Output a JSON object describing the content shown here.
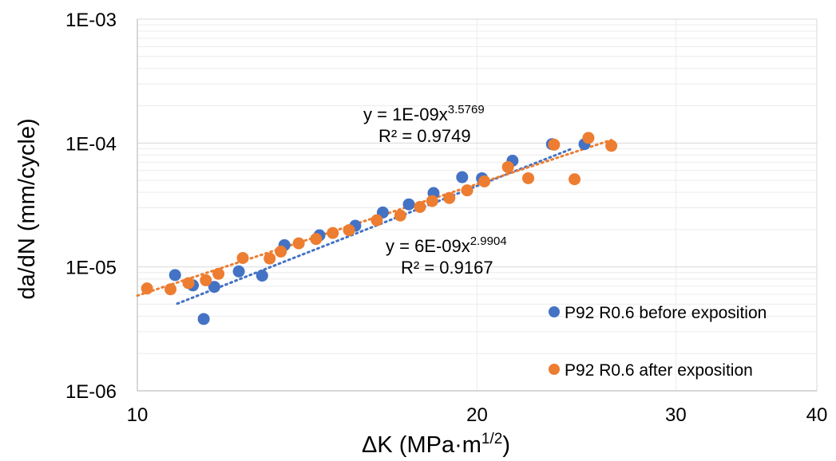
{
  "chart_data": {
    "type": "scatter",
    "xscale": "log",
    "yscale": "log",
    "xlim": [
      10,
      40
    ],
    "ylim": [
      1e-06,
      0.001
    ],
    "x_ticks": [
      {
        "value": 10,
        "label": "10"
      },
      {
        "value": 20,
        "label": "20"
      },
      {
        "value": 30,
        "label": "30"
      },
      {
        "value": 40,
        "label": "40"
      }
    ],
    "y_ticks": [
      {
        "value": 1e-06,
        "label": "1E-06"
      },
      {
        "value": 1e-05,
        "label": "1E-05"
      },
      {
        "value": 0.0001,
        "label": "1E-04"
      },
      {
        "value": 0.001,
        "label": "1E-03"
      }
    ],
    "xlabel": {
      "main": "ΔK (MPa·m",
      "sup": "1/2",
      "tail": ")"
    },
    "ylabel": "da/dN (mm/cycle)",
    "grid": {
      "major": true,
      "minor": true
    },
    "legend_position": "right",
    "series": [
      {
        "name": "P92 R0.6 before exposition",
        "color": "#4472C4",
        "points": [
          {
            "x": 10.8,
            "y": 8.6e-06
          },
          {
            "x": 11.2,
            "y": 7.1e-06
          },
          {
            "x": 11.45,
            "y": 3.8e-06
          },
          {
            "x": 11.7,
            "y": 6.9e-06
          },
          {
            "x": 12.3,
            "y": 9.2e-06
          },
          {
            "x": 12.9,
            "y": 8.5e-06
          },
          {
            "x": 13.5,
            "y": 1.5e-05
          },
          {
            "x": 14.5,
            "y": 1.8e-05
          },
          {
            "x": 15.6,
            "y": 2.15e-05
          },
          {
            "x": 16.5,
            "y": 2.75e-05
          },
          {
            "x": 17.4,
            "y": 3.2e-05
          },
          {
            "x": 18.3,
            "y": 3.95e-05
          },
          {
            "x": 19.4,
            "y": 5.3e-05
          },
          {
            "x": 20.2,
            "y": 5.2e-05
          },
          {
            "x": 21.5,
            "y": 7.2e-05
          },
          {
            "x": 23.3,
            "y": 9.8e-05
          },
          {
            "x": 24.9,
            "y": 9.8e-05
          }
        ],
        "trendline": {
          "coef": 1e-09,
          "exponent": 3.5769,
          "x_range": [
            10.85,
            24.2
          ],
          "equation": {
            "main": "y = 1E-09x",
            "sup": "3.5769"
          },
          "r2": "R² = 0.9749"
        }
      },
      {
        "name": "P92 R0.6 after exposition",
        "color": "#ED7D31",
        "points": [
          {
            "x": 10.2,
            "y": 6.7e-06
          },
          {
            "x": 10.7,
            "y": 6.6e-06
          },
          {
            "x": 11.1,
            "y": 7.4e-06
          },
          {
            "x": 11.5,
            "y": 7.8e-06
          },
          {
            "x": 11.8,
            "y": 8.8e-06
          },
          {
            "x": 12.4,
            "y": 1.18e-05
          },
          {
            "x": 13.1,
            "y": 1.17e-05
          },
          {
            "x": 13.4,
            "y": 1.33e-05
          },
          {
            "x": 13.9,
            "y": 1.55e-05
          },
          {
            "x": 14.4,
            "y": 1.68e-05
          },
          {
            "x": 14.9,
            "y": 1.88e-05
          },
          {
            "x": 15.4,
            "y": 1.98e-05
          },
          {
            "x": 16.3,
            "y": 2.38e-05
          },
          {
            "x": 17.1,
            "y": 2.6e-05
          },
          {
            "x": 17.8,
            "y": 3.05e-05
          },
          {
            "x": 18.25,
            "y": 3.4e-05
          },
          {
            "x": 18.9,
            "y": 3.6e-05
          },
          {
            "x": 19.6,
            "y": 4.15e-05
          },
          {
            "x": 20.3,
            "y": 4.9e-05
          },
          {
            "x": 21.3,
            "y": 6.4e-05
          },
          {
            "x": 22.2,
            "y": 5.2e-05
          },
          {
            "x": 23.4,
            "y": 9.7e-05
          },
          {
            "x": 24.4,
            "y": 5.1e-05
          },
          {
            "x": 25.1,
            "y": 0.00011
          },
          {
            "x": 26.3,
            "y": 9.5e-05
          }
        ],
        "trendline": {
          "coef": 6e-09,
          "exponent": 2.9904,
          "x_range": [
            10.0,
            26.3
          ],
          "equation": {
            "main": "y = 6E-09x",
            "sup": "2.9904"
          },
          "r2": "R² = 0.9167"
        }
      }
    ]
  }
}
